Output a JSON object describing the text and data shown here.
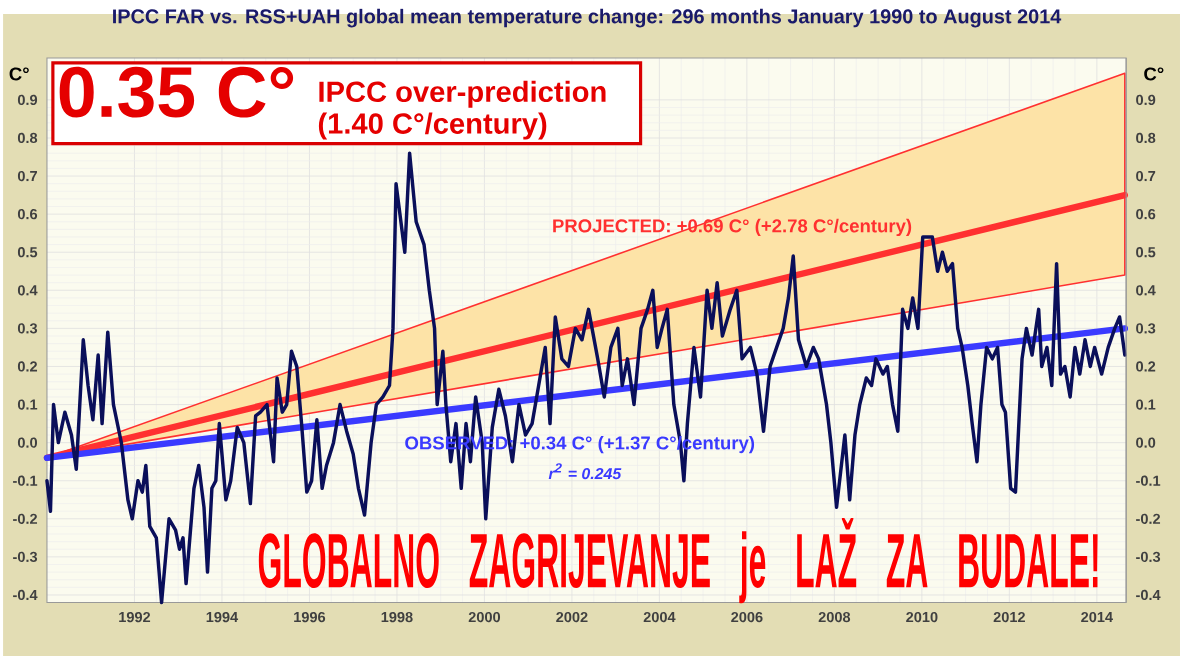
{
  "chart_data": {
    "type": "line",
    "title": "IPCC FAR vs. RSS+UAH global mean temperature change: 296 months January 1990 to August 2014",
    "ylabel": "C°",
    "y2label": "C°",
    "xlim": [
      1990,
      2014.67
    ],
    "ylim": [
      -0.42,
      1.01
    ],
    "y2lim": [
      -0.42,
      1.01
    ],
    "xticks": [
      1992,
      1994,
      1996,
      1998,
      2000,
      2002,
      2004,
      2006,
      2008,
      2010,
      2012,
      2014
    ],
    "yticks": [
      {
        "value": -0.4,
        "label": "-0.4"
      },
      {
        "value": -0.3,
        "label": "-0.3"
      },
      {
        "value": -0.2,
        "label": "-0.2"
      },
      {
        "value": -0.1,
        "label": "-0.1"
      },
      {
        "value": 0,
        "label": "0.0"
      },
      {
        "value": 0.1,
        "label": "0.1"
      },
      {
        "value": 0.2,
        "label": "0.2"
      },
      {
        "value": 0.3,
        "label": "0.3"
      },
      {
        "value": 0.4,
        "label": "0.4"
      },
      {
        "value": 0.5,
        "label": "0.5"
      },
      {
        "value": 0.6,
        "label": "0.6"
      },
      {
        "value": 0.7,
        "label": "0.7"
      },
      {
        "value": 0.8,
        "label": "0.8"
      },
      {
        "value": 0.9,
        "label": "0.9"
      }
    ],
    "y2ticks": [
      {
        "value": -0.4,
        "label": "-0.4"
      },
      {
        "value": -0.3,
        "label": "-0.3"
      },
      {
        "value": -0.2,
        "label": "-0.2"
      },
      {
        "value": -0.1,
        "label": "-0.1"
      },
      {
        "value": 0,
        "label": "0.0"
      },
      {
        "value": 0.1,
        "label": "0.1"
      },
      {
        "value": 0.2,
        "label": "0.2"
      },
      {
        "value": 0.3,
        "label": "0.3"
      },
      {
        "value": 0.4,
        "label": "0.4"
      },
      {
        "value": 0.5,
        "label": "0.5"
      },
      {
        "value": 0.6,
        "label": "0.6"
      },
      {
        "value": 0.7,
        "label": "0.7"
      },
      {
        "value": 0.8,
        "label": "0.8"
      },
      {
        "value": 0.9,
        "label": "0.9"
      }
    ],
    "grid": true,
    "series": [
      {
        "name": "PROJECTED: +0.69 C° (+2.78 C°/century)",
        "color": "#ff3030",
        "x": [
          1990,
          2014.64
        ],
        "values": [
          -0.04,
          0.65
        ],
        "lower": [
          -0.04,
          0.44
        ],
        "upper": [
          -0.04,
          0.97
        ]
      },
      {
        "name": "OBSERVED: +0.34 C° (+1.37 C°/century)",
        "color": "#3a3aff",
        "x": [
          1990,
          2014.64
        ],
        "values": [
          -0.04,
          0.3
        ]
      },
      {
        "color": "#0a0f5a",
        "x": [
          1990.0,
          1990.08,
          1990.15,
          1990.26,
          1990.41,
          1990.56,
          1990.67,
          1990.83,
          1990.94,
          1991.05,
          1991.17,
          1991.26,
          1991.39,
          1991.52,
          1991.7,
          1991.85,
          1991.95,
          1992.08,
          1992.18,
          1992.26,
          1992.35,
          1992.5,
          1992.62,
          1992.79,
          1992.94,
          1993.03,
          1993.11,
          1993.18,
          1993.36,
          1993.47,
          1993.59,
          1993.67,
          1993.77,
          1993.86,
          1993.94,
          1994.09,
          1994.2,
          1994.35,
          1994.5,
          1994.65,
          1994.77,
          1994.88,
          1995.03,
          1995.18,
          1995.26,
          1995.38,
          1995.48,
          1995.59,
          1995.71,
          1995.82,
          1995.94,
          1996.05,
          1996.17,
          1996.29,
          1996.39,
          1996.55,
          1996.7,
          1996.85,
          1997.0,
          1997.12,
          1997.26,
          1997.41,
          1997.53,
          1997.68,
          1997.83,
          1997.91,
          1997.98,
          1998.18,
          1998.29,
          1998.44,
          1998.62,
          1998.74,
          1998.86,
          1998.92,
          1999.05,
          1999.12,
          1999.23,
          1999.35,
          1999.47,
          1999.58,
          1999.68,
          1999.8,
          1999.95,
          2000.03,
          2000.18,
          2000.33,
          2000.48,
          2000.64,
          2000.79,
          2000.94,
          2001.09,
          2001.24,
          2001.39,
          2001.5,
          2001.62,
          2001.77,
          2001.92,
          2002.08,
          2002.23,
          2002.38,
          2002.59,
          2002.74,
          2002.89,
          2003.05,
          2003.15,
          2003.27,
          2003.42,
          2003.58,
          2003.73,
          2003.85,
          2003.95,
          2004.06,
          2004.18,
          2004.33,
          2004.48,
          2004.56,
          2004.64,
          2004.79,
          2004.94,
          2005.09,
          2005.2,
          2005.32,
          2005.44,
          2005.62,
          2005.77,
          2005.89,
          2006.08,
          2006.23,
          2006.38,
          2006.53,
          2006.68,
          2006.83,
          2006.95,
          2007.06,
          2007.18,
          2007.36,
          2007.52,
          2007.64,
          2007.82,
          2007.92,
          2008.05,
          2008.17,
          2008.24,
          2008.35,
          2008.47,
          2008.58,
          2008.73,
          2008.85,
          2008.95,
          2009.11,
          2009.21,
          2009.33,
          2009.45,
          2009.56,
          2009.68,
          2009.79,
          2009.91,
          2010.02,
          2010.24,
          2010.36,
          2010.47,
          2010.58,
          2010.7,
          2010.82,
          2010.92,
          2011.05,
          2011.15,
          2011.26,
          2011.35,
          2011.48,
          2011.61,
          2011.73,
          2011.83,
          2011.91,
          2012.03,
          2012.14,
          2012.29,
          2012.39,
          2012.52,
          2012.67,
          2012.74,
          2012.86,
          2012.97,
          2013.08,
          2013.17,
          2013.27,
          2013.39,
          2013.5,
          2013.61,
          2013.73,
          2013.85,
          2013.95,
          2014.11,
          2014.26,
          2014.41,
          2014.52,
          2014.64
        ],
        "values": [
          -0.1,
          -0.18,
          0.1,
          0.0,
          0.08,
          0.02,
          -0.07,
          0.27,
          0.15,
          0.06,
          0.23,
          0.05,
          0.29,
          0.1,
          0.0,
          -0.15,
          -0.2,
          -0.1,
          -0.13,
          -0.06,
          -0.22,
          -0.25,
          -0.42,
          -0.2,
          -0.23,
          -0.28,
          -0.25,
          -0.37,
          -0.12,
          -0.06,
          -0.17,
          -0.34,
          -0.12,
          -0.1,
          0.05,
          -0.15,
          -0.1,
          0.04,
          0.0,
          -0.16,
          0.07,
          0.08,
          0.1,
          -0.05,
          0.17,
          0.08,
          0.1,
          0.24,
          0.2,
          0.05,
          -0.13,
          -0.1,
          0.06,
          -0.12,
          -0.06,
          0.0,
          0.1,
          0.03,
          -0.03,
          -0.12,
          -0.19,
          0.0,
          0.1,
          0.12,
          0.15,
          0.3,
          0.68,
          0.5,
          0.76,
          0.58,
          0.52,
          0.4,
          0.3,
          0.1,
          0.24,
          0.1,
          -0.05,
          0.05,
          -0.12,
          0.05,
          -0.05,
          0.12,
          0.0,
          -0.2,
          0.04,
          0.14,
          0.07,
          -0.05,
          0.1,
          0.02,
          0.05,
          0.15,
          0.25,
          0.05,
          0.33,
          0.22,
          0.2,
          0.3,
          0.27,
          0.35,
          0.22,
          0.12,
          0.25,
          0.3,
          0.15,
          0.22,
          0.1,
          0.3,
          0.35,
          0.4,
          0.25,
          0.3,
          0.35,
          0.1,
          0.0,
          -0.1,
          0.05,
          0.25,
          0.12,
          0.4,
          0.3,
          0.42,
          0.28,
          0.35,
          0.4,
          0.22,
          0.25,
          0.18,
          0.03,
          0.2,
          0.25,
          0.3,
          0.38,
          0.49,
          0.27,
          0.2,
          0.25,
          0.22,
          0.1,
          0.0,
          -0.17,
          -0.05,
          0.02,
          -0.15,
          0.02,
          0.1,
          0.17,
          0.15,
          0.22,
          0.18,
          0.2,
          0.1,
          0.03,
          0.35,
          0.3,
          0.38,
          0.3,
          0.54,
          0.54,
          0.45,
          0.5,
          0.45,
          0.47,
          0.3,
          0.25,
          0.15,
          0.05,
          -0.05,
          0.1,
          0.25,
          0.22,
          0.25,
          0.1,
          0.08,
          -0.12,
          -0.13,
          0.22,
          0.3,
          0.23,
          0.35,
          0.2,
          0.25,
          0.15,
          0.47,
          0.18,
          0.2,
          0.12,
          0.25,
          0.18,
          0.27,
          0.2,
          0.25,
          0.18,
          0.25,
          0.3,
          0.33,
          0.23
        ]
      }
    ],
    "annotations": [
      "0.35 C°",
      "IPCC over-prediction (1.40 C°/century)",
      "r$^{2}$ = 0.245",
      "GLOBALNO ZAGRIJEVANJE je LAŽ ZA BUDALE!"
    ]
  }
}
